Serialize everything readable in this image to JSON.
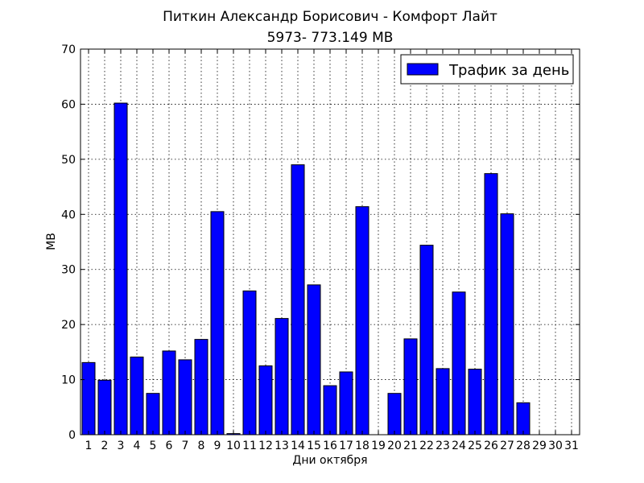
{
  "chart_data": {
    "type": "bar",
    "title": "Питкин Александр Борисович - Комфорт Лайт",
    "subtitle": "5973- 773.149 MB",
    "xlabel": "Дни октября",
    "ylabel": "MB",
    "x_ticks": [
      "1",
      "2",
      "3",
      "4",
      "5",
      "6",
      "7",
      "8",
      "9",
      "10",
      "11",
      "12",
      "13",
      "14",
      "15",
      "16",
      "17",
      "18",
      "19",
      "20",
      "21",
      "22",
      "23",
      "24",
      "25",
      "26",
      "27",
      "28",
      "29",
      "30",
      "31"
    ],
    "y_ticks": [
      "0",
      "10",
      "20",
      "30",
      "40",
      "50",
      "60",
      "70"
    ],
    "xlim": [
      0.5,
      31.5
    ],
    "ylim": [
      0,
      70
    ],
    "grid": true,
    "legend": {
      "placement": "top-right"
    },
    "series": [
      {
        "name": "Трафик за день",
        "color": "#0000ff",
        "x": [
          1,
          2,
          3,
          4,
          5,
          6,
          7,
          8,
          9,
          10,
          11,
          12,
          13,
          14,
          15,
          16,
          17,
          18,
          19,
          20,
          21,
          22,
          23,
          24,
          25,
          26,
          27,
          28,
          29,
          30,
          31
        ],
        "values": [
          13.1,
          9.9,
          60.2,
          14.1,
          7.5,
          15.2,
          13.6,
          17.3,
          40.5,
          0.2,
          26.1,
          12.5,
          21.1,
          49.0,
          27.2,
          8.9,
          11.4,
          41.4,
          0,
          7.5,
          17.4,
          34.4,
          12.0,
          25.9,
          11.9,
          47.4,
          40.1,
          5.8,
          0,
          0,
          0
        ]
      }
    ]
  }
}
